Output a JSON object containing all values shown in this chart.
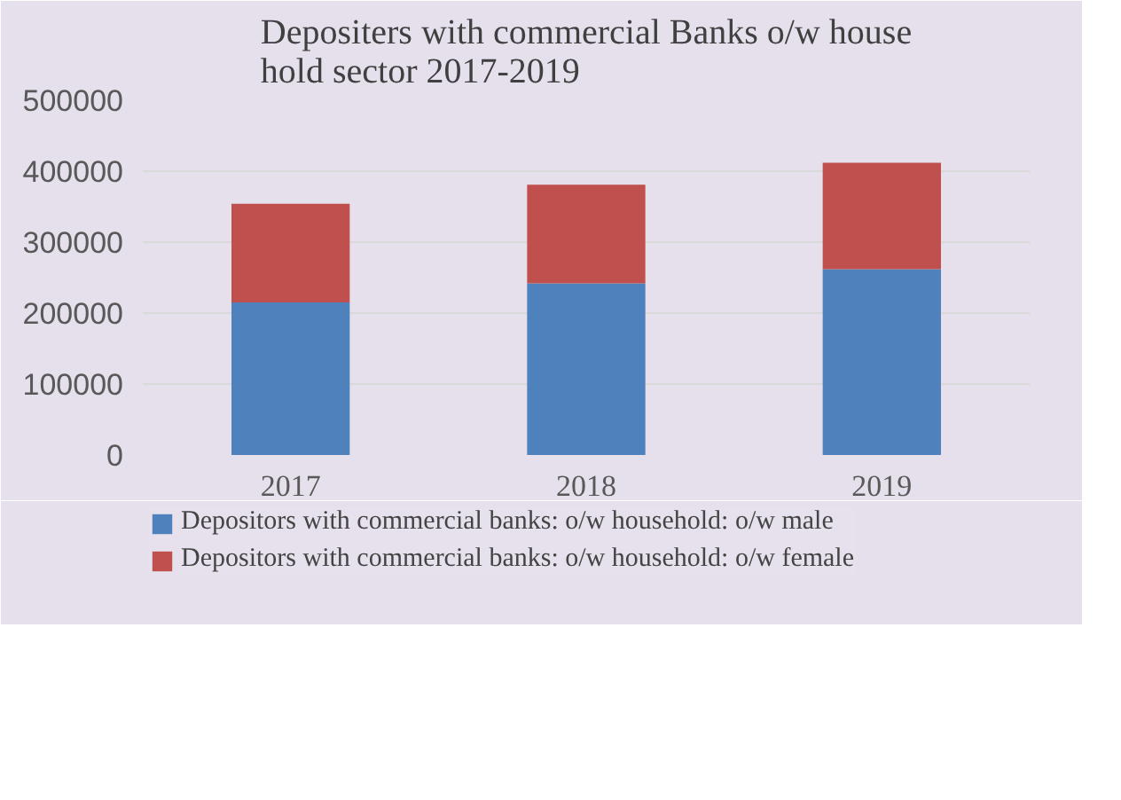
{
  "chart_data": {
    "type": "bar",
    "stacked": true,
    "title": "Depositers with commercial Banks o/w house hold sector 2017-2019",
    "categories": [
      "2017",
      "2018",
      "2019"
    ],
    "series": [
      {
        "name": "Depositors with commercial banks: o/w household: o/w male",
        "color": "#4f81bd",
        "values": [
          215000,
          242000,
          262000
        ]
      },
      {
        "name": "Depositors with commercial banks: o/w household: o/w female",
        "color": "#c0504d",
        "values": [
          139000,
          139000,
          150000
        ]
      }
    ],
    "ylim": [
      0,
      500000
    ],
    "yticks": [
      0,
      100000,
      200000,
      300000,
      400000,
      500000
    ],
    "grid": "y",
    "legend": "bottom"
  }
}
